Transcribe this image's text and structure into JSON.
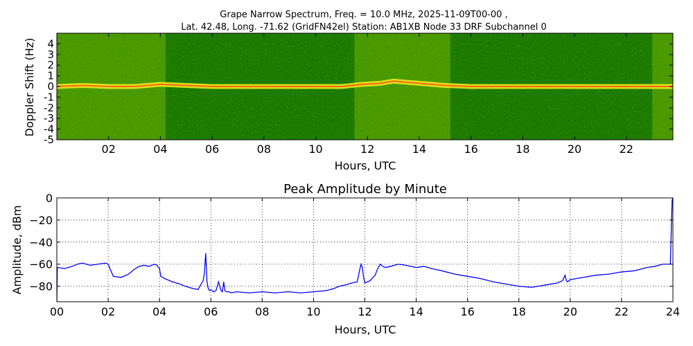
{
  "figure": {
    "title_line1": "Grape Narrow Spectrum, Freq. = 10.0 MHz, 2025-11-09T00-00 ,",
    "title_line2": "Lat.  42.48, Long. -71.62 (GridFN42el) Station: AB1XB Node 33 DRF Subchannel 0"
  },
  "chart_data": [
    {
      "type": "heatmap",
      "title": "",
      "xlabel": "Hours, UTC",
      "ylabel": "Doppler Shift (Hz)",
      "xlim": [
        0,
        23.8
      ],
      "ylim": [
        -5,
        5
      ],
      "x_ticks": [
        2,
        4,
        6,
        8,
        10,
        12,
        14,
        16,
        18,
        20,
        22
      ],
      "x_tick_labels": [
        "02",
        "04",
        "06",
        "08",
        "10",
        "12",
        "14",
        "16",
        "18",
        "20",
        "22"
      ],
      "y_ticks": [
        4,
        3,
        2,
        1,
        0,
        -1,
        -2,
        -3,
        -4,
        -5
      ],
      "y_tick_labels": [
        "4",
        "3",
        "2",
        "1",
        "0",
        "-1",
        "-2",
        "-3",
        "-4",
        "-5"
      ],
      "colors": {
        "background": "#1b7a00",
        "mid": "#9fd000",
        "high": "#f4ee20",
        "peak": "#ff5a10"
      },
      "signal_trace": {
        "x": [
          0,
          1,
          2,
          3,
          4,
          5,
          6,
          7,
          8,
          9,
          10,
          11,
          11.8,
          12.5,
          13,
          14,
          15,
          16,
          17,
          18,
          19,
          20,
          21,
          22,
          23,
          23.8
        ],
        "y": [
          0,
          0.1,
          0,
          0,
          0.2,
          0.1,
          0,
          0,
          0,
          0,
          0,
          0,
          0.2,
          0.3,
          0.5,
          0.3,
          0.1,
          0,
          0,
          0,
          0,
          0,
          0,
          0,
          0,
          0
        ]
      },
      "high_activity_hours": [
        [
          0,
          4.2
        ],
        [
          11.5,
          15.2
        ],
        [
          23,
          23.8
        ]
      ]
    },
    {
      "type": "line",
      "title": "Peak Amplitude by Minute",
      "xlabel": "Hours, UTC",
      "ylabel": "Amplitude, dBm",
      "xlim": [
        0,
        24
      ],
      "ylim": [
        -94,
        0
      ],
      "grid": true,
      "color": "#0000ff",
      "x_ticks": [
        0,
        2,
        4,
        6,
        8,
        10,
        12,
        14,
        16,
        18,
        20,
        22,
        24
      ],
      "x_tick_labels": [
        "00",
        "02",
        "04",
        "06",
        "08",
        "10",
        "12",
        "14",
        "16",
        "18",
        "20",
        "22",
        "24"
      ],
      "y_ticks": [
        0,
        -20,
        -40,
        -60,
        -80
      ],
      "y_tick_labels": [
        "0",
        "−20",
        "−40",
        "−60",
        "−80"
      ],
      "x": [
        0,
        0.02,
        0.3,
        0.6,
        0.8,
        1.0,
        1.3,
        1.6,
        1.9,
        2.0,
        2.05,
        2.2,
        2.5,
        2.8,
        3.0,
        3.2,
        3.4,
        3.6,
        3.8,
        3.9,
        4.0,
        4.05,
        4.2,
        4.5,
        4.8,
        5.0,
        5.3,
        5.5,
        5.7,
        5.75,
        5.8,
        5.85,
        5.9,
        5.95,
        6.0,
        6.1,
        6.2,
        6.3,
        6.4,
        6.45,
        6.5,
        6.55,
        6.6,
        6.7,
        6.8,
        7.0,
        7.5,
        8.0,
        8.5,
        9.0,
        9.5,
        10.0,
        10.5,
        10.8,
        11.0,
        11.2,
        11.5,
        11.7,
        11.8,
        11.85,
        11.9,
        11.95,
        12.0,
        12.2,
        12.4,
        12.5,
        12.6,
        12.7,
        12.8,
        13.0,
        13.3,
        13.6,
        14.0,
        14.3,
        14.6,
        15.0,
        15.5,
        16.0,
        16.5,
        17.0,
        17.5,
        18.0,
        18.5,
        19.0,
        19.5,
        19.7,
        19.8,
        19.85,
        19.9,
        20.0,
        20.5,
        21.0,
        21.5,
        22.0,
        22.5,
        23.0,
        23.3,
        23.6,
        23.9,
        23.97,
        24.0
      ],
      "y": [
        -94,
        -63,
        -64,
        -62,
        -60,
        -59,
        -61,
        -60,
        -59,
        -60,
        -63,
        -71,
        -72,
        -69,
        -65,
        -62,
        -61,
        -62,
        -60,
        -61,
        -64,
        -71,
        -73,
        -76,
        -78,
        -80,
        -82,
        -83,
        -75,
        -68,
        -50,
        -76,
        -82,
        -84,
        -83,
        -85,
        -84,
        -76,
        -84,
        -85,
        -76,
        -84,
        -85,
        -85,
        -86,
        -85,
        -86,
        -85,
        -86,
        -85,
        -86,
        -85,
        -84,
        -82,
        -80,
        -79,
        -77,
        -76,
        -65,
        -60,
        -63,
        -72,
        -77,
        -75,
        -70,
        -64,
        -60,
        -62,
        -63,
        -62,
        -60,
        -61,
        -63,
        -62,
        -64,
        -66,
        -69,
        -71,
        -73,
        -76,
        -78,
        -80,
        -81,
        -79,
        -77,
        -75,
        -70,
        -75,
        -76,
        -74,
        -72,
        -70,
        -69,
        -67,
        -66,
        -63,
        -62,
        -60,
        -60,
        -2,
        0
      ]
    }
  ]
}
